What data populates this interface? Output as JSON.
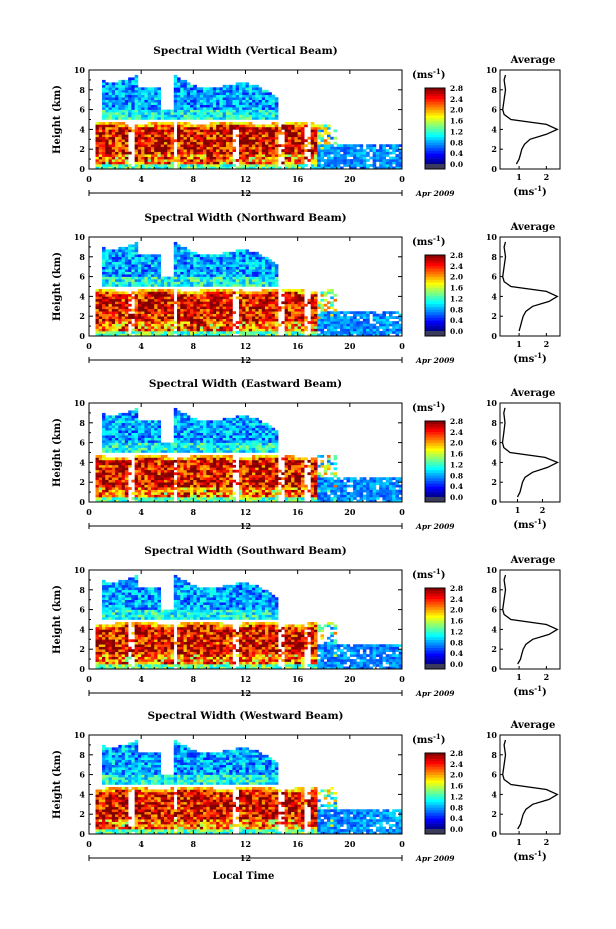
{
  "colorbar": {
    "label": "(ms",
    "label_sup": "-1",
    "label_close": ")",
    "ticks": [
      "0.0",
      "0.4",
      "0.8",
      "1.2",
      "1.6",
      "2.0",
      "2.4",
      "2.8"
    ],
    "range": [
      0.0,
      2.8
    ]
  },
  "ylabel": "Height (km)",
  "xlabel": "Local Time",
  "date_label": "Apr 2009",
  "day_label": "12",
  "avg_title": "Average",
  "avg_xlabel": "(ms",
  "avg_xlabel_sup": "-1",
  "avg_xlabel_close": ")",
  "height_ticks": [
    "0",
    "2",
    "4",
    "6",
    "8",
    "10"
  ],
  "time_ticks": [
    "0",
    "4",
    "8",
    "12",
    "16",
    "20",
    "0"
  ],
  "chart_data": [
    {
      "type": "heatmap",
      "title": "Spectral Width (Vertical Beam)",
      "xlabel": "Local Time",
      "ylabel": "Height (km)",
      "xlim": [
        0,
        24
      ],
      "ylim": [
        0,
        10
      ],
      "avg_profile": {
        "xticks": [
          "1",
          "2"
        ],
        "xlim": [
          0.3,
          2.5
        ],
        "height": [
          0.5,
          1.0,
          1.5,
          2.0,
          2.5,
          3.0,
          3.5,
          4.0,
          4.5,
          5.0,
          5.5,
          6.0,
          7.0,
          8.0,
          9.0,
          9.5
        ],
        "value": [
          0.9,
          1.0,
          1.05,
          1.1,
          1.2,
          1.4,
          2.0,
          2.4,
          2.0,
          0.7,
          0.45,
          0.4,
          0.45,
          0.5,
          0.45,
          0.5
        ]
      }
    },
    {
      "type": "heatmap",
      "title": "Spectral Width (Northward Beam)",
      "xlabel": "Local Time",
      "ylabel": "Height (km)",
      "xlim": [
        0,
        24
      ],
      "ylim": [
        0,
        10
      ],
      "avg_profile": {
        "xticks": [
          "1",
          "2"
        ],
        "xlim": [
          0.3,
          2.5
        ],
        "height": [
          0.5,
          1.0,
          1.5,
          2.0,
          2.5,
          3.0,
          3.5,
          4.0,
          4.5,
          5.0,
          5.5,
          6.0,
          7.0,
          8.0,
          9.0,
          9.5
        ],
        "value": [
          1.0,
          1.05,
          1.1,
          1.15,
          1.25,
          1.5,
          2.1,
          2.4,
          2.0,
          0.7,
          0.45,
          0.4,
          0.45,
          0.5,
          0.45,
          0.5
        ]
      }
    },
    {
      "type": "heatmap",
      "title": "Spectral Width (Eastward Beam)",
      "xlabel": "Local Time",
      "ylabel": "Height (km)",
      "xlim": [
        0,
        24
      ],
      "ylim": [
        0,
        10
      ],
      "avg_profile": {
        "xticks": [
          "1",
          "2"
        ],
        "xlim": [
          0.3,
          2.7
        ],
        "height": [
          0.5,
          1.0,
          1.5,
          2.0,
          2.5,
          3.0,
          3.5,
          4.0,
          4.5,
          5.0,
          5.5,
          6.0,
          7.0,
          8.0,
          9.0,
          9.5
        ],
        "value": [
          1.0,
          1.1,
          1.15,
          1.2,
          1.3,
          1.6,
          2.2,
          2.6,
          2.1,
          0.7,
          0.45,
          0.4,
          0.45,
          0.5,
          0.45,
          0.5
        ]
      }
    },
    {
      "type": "heatmap",
      "title": "Spectral Width (Southward Beam)",
      "xlabel": "Local Time",
      "ylabel": "Height (km)",
      "xlim": [
        0,
        24
      ],
      "ylim": [
        0,
        10
      ],
      "avg_profile": {
        "xticks": [
          "1",
          "2"
        ],
        "xlim": [
          0.3,
          2.5
        ],
        "height": [
          0.5,
          1.0,
          1.5,
          2.0,
          2.5,
          3.0,
          3.5,
          4.0,
          4.5,
          5.0,
          5.5,
          6.0,
          7.0,
          8.0,
          9.0,
          9.5
        ],
        "value": [
          0.95,
          1.05,
          1.1,
          1.15,
          1.25,
          1.5,
          2.1,
          2.4,
          2.0,
          0.7,
          0.45,
          0.4,
          0.45,
          0.5,
          0.45,
          0.5
        ]
      }
    },
    {
      "type": "heatmap",
      "title": "Spectral Width (Westward Beam)",
      "xlabel": "Local Time",
      "ylabel": "Height (km)",
      "xlim": [
        0,
        24
      ],
      "ylim": [
        0,
        10
      ],
      "avg_profile": {
        "xticks": [
          "1",
          "2"
        ],
        "xlim": [
          0.3,
          2.5
        ],
        "height": [
          0.5,
          1.0,
          1.5,
          2.0,
          2.5,
          3.0,
          3.5,
          4.0,
          4.5,
          5.0,
          5.5,
          6.0,
          7.0,
          8.0,
          9.0,
          9.5
        ],
        "value": [
          0.95,
          1.05,
          1.1,
          1.15,
          1.25,
          1.5,
          2.1,
          2.4,
          2.0,
          0.7,
          0.45,
          0.4,
          0.45,
          0.5,
          0.45,
          0.5
        ]
      }
    }
  ]
}
